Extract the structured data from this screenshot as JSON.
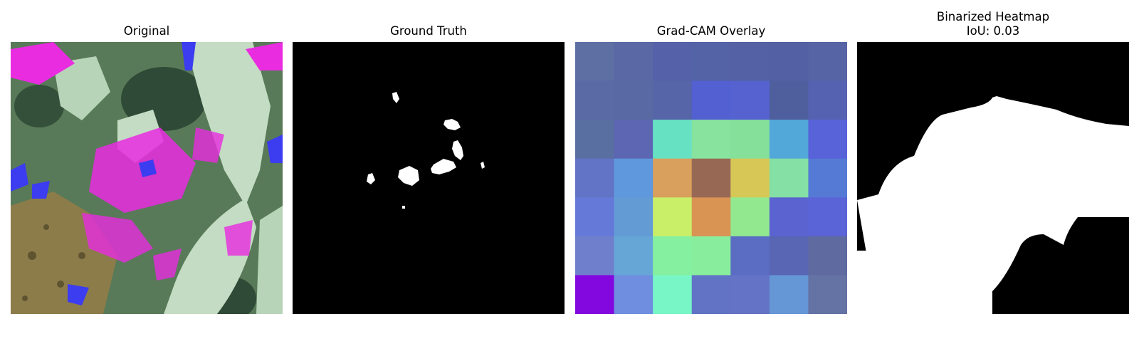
{
  "panels": [
    {
      "title": "Original"
    },
    {
      "title": "Ground Truth"
    },
    {
      "title": "Grad-CAM Overlay"
    },
    {
      "title": "Binarized Heatmap",
      "subtitle": "IoU: 0.03"
    }
  ],
  "colors": {
    "leaf_light": "#c3dcc3",
    "leaf_dark": "#3d5a45",
    "soil": "#8c7c4a",
    "magenta": "#e92ce0",
    "blue": "#3c3cf0",
    "mask_white": "#ffffff",
    "mask_black": "#000000"
  },
  "gradcam_grid": [
    [
      "#5e6fa3",
      "#5a68a5",
      "#5561a8",
      "#5462a6",
      "#5461a4",
      "#5360a4",
      "#5663a5"
    ],
    [
      "#5a6aa5",
      "#5969a4",
      "#5664a8",
      "#5360d2",
      "#5562d0",
      "#4f5f9d",
      "#5562b2"
    ],
    [
      "#5a6fa1",
      "#5d66b3",
      "#66e2c3",
      "#87e39d",
      "#85e09a",
      "#52a8d8",
      "#5862d9"
    ],
    [
      "#6174c5",
      "#5f98dd",
      "#d99f5c",
      "#976955",
      "#d6c757",
      "#84e0a4",
      "#557ad5"
    ],
    [
      "#6579d8",
      "#639bd5",
      "#c9ef69",
      "#d99353",
      "#92e88f",
      "#5a63d0",
      "#5a64d6"
    ],
    [
      "#6f7fcc",
      "#66a6d6",
      "#84f0a0",
      "#88ee9e",
      "#5b6dc3",
      "#5966b4",
      "#5e6aa0"
    ],
    [
      "#8307df",
      "#6f8ee0",
      "#78f6c6",
      "#6273c6",
      "#6573c6",
      "#6596d6",
      "#6572a4"
    ]
  ]
}
